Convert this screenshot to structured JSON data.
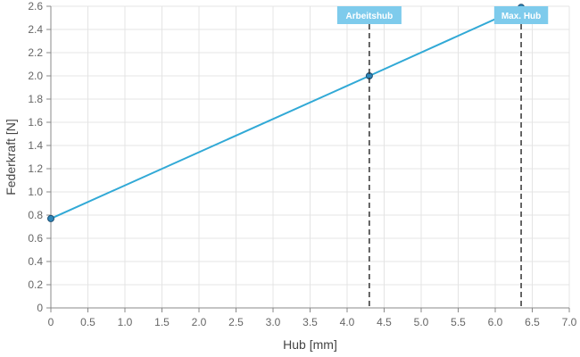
{
  "chart_data": {
    "type": "line",
    "xlabel": "Hub [mm]",
    "ylabel": "Federkraft [N]",
    "xlim": [
      0,
      7.0
    ],
    "ylim": [
      0,
      2.6
    ],
    "x_ticks": [
      "0",
      "0.5",
      "1.0",
      "1.5",
      "2.0",
      "2.5",
      "3.0",
      "3.5",
      "4.0",
      "4.5",
      "5.0",
      "5.5",
      "6.0",
      "6.5",
      "7.0"
    ],
    "y_ticks": [
      "0",
      "0.2",
      "0.4",
      "0.6",
      "0.8",
      "1.0",
      "1.2",
      "1.4",
      "1.6",
      "1.8",
      "2.0",
      "2.2",
      "2.4",
      "2.6"
    ],
    "grid": true,
    "series": [
      {
        "points": [
          {
            "x": 0,
            "y": 0.77
          },
          {
            "x": 4.3,
            "y": 2.0
          },
          {
            "x": 6.35,
            "y": 2.59
          }
        ]
      }
    ],
    "markers": [
      {
        "label": "Arbeitshub",
        "x": 4.3
      },
      {
        "label": "Max. Hub",
        "x": 6.35
      }
    ],
    "colors": {
      "line": "#31a9d6",
      "point_fill": "#2e86b8",
      "point_stroke": "#1d4f73",
      "marker_line": "#333333",
      "marker_label_bg": "#7ecbec",
      "grid": "#e4e4e4",
      "axis": "#888888"
    }
  }
}
